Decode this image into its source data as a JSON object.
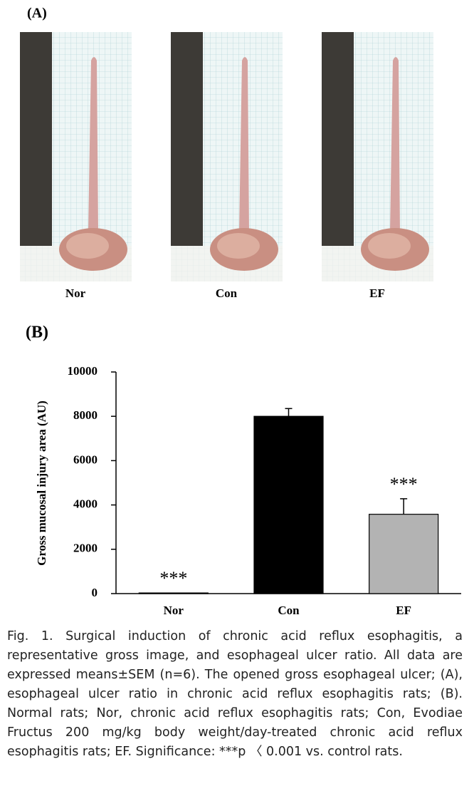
{
  "panel_a": {
    "label": "(A)",
    "photo_labels": [
      "Nor",
      "Con",
      "EF"
    ]
  },
  "panel_b_label": "(B)",
  "chart_data": {
    "type": "bar",
    "y_label": "Gross mucosal injury area (AU)",
    "categories": [
      "Nor",
      "Con",
      "EF"
    ],
    "values": [
      30,
      8000,
      3580
    ],
    "errors": [
      0,
      350,
      700
    ],
    "colors": [
      "#ffffff",
      "#000000",
      "#b3b3b3"
    ],
    "annotations": [
      {
        "category": 0,
        "text": "***"
      },
      {
        "category": 2,
        "text": "***"
      }
    ],
    "ylim": [
      0,
      10000
    ],
    "yticks": [
      0,
      2000,
      4000,
      6000,
      8000,
      10000
    ]
  },
  "caption": "Fig. 1. Surgical induction of chronic acid reflux esophagitis, a representative gross image, and esophageal ulcer ratio. All data are expressed means±SEM (n=6). The opened gross esophageal ulcer; (A), esophageal ulcer ratio in chronic acid reflux esophagitis rats; (B). Normal rats; Nor, chronic acid reflux esophagitis rats; Con, Evodiae Fructus 200 mg/kg body weight/day-treated chronic acid reflux esophagitis rats; EF. Significance: ***p 〈 0.001 vs. control rats."
}
